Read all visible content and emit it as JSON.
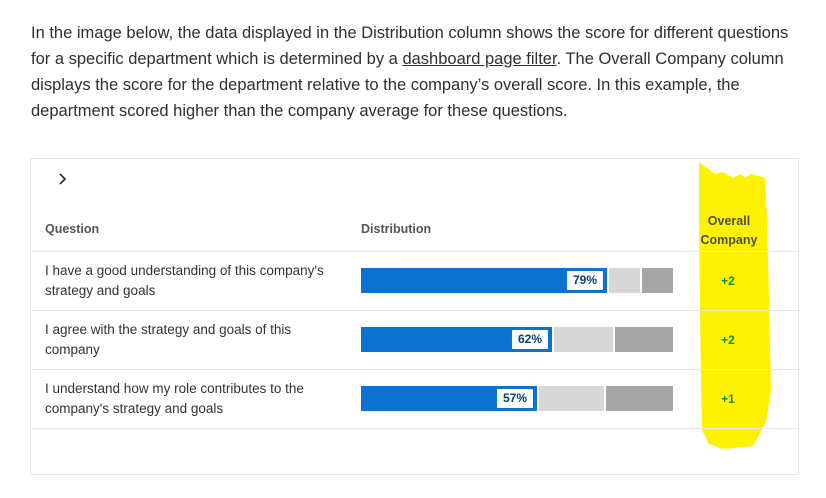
{
  "intro": {
    "part1": "In the image below, the data displayed in the Distribution column shows the score for different questions for a specific department which is determined by a ",
    "link": "dashboard page filter",
    "part2": ". The Overall Company column displays the score for the department relative to the company’s overall score. In this example, the department scored higher than the company average for these questions."
  },
  "table": {
    "expand_icon": "chevron-right-icon",
    "headers": {
      "question": "Question",
      "distribution": "Distribution",
      "overall": "Overall Company"
    },
    "rows": [
      {
        "question": "I have a good understanding of this company's strategy and goals",
        "percent_label": "79%",
        "percent": 79,
        "light": 10,
        "dark": 10,
        "delta": "+2"
      },
      {
        "question": "I agree with the strategy and goals of this company",
        "percent_label": "62%",
        "percent": 62,
        "light": 19,
        "dark": 19,
        "delta": "+2"
      },
      {
        "question": "I understand how my role contributes to the company's strategy and goals",
        "percent_label": "57%",
        "percent": 57,
        "light": 21,
        "dark": 22,
        "delta": "+1"
      }
    ]
  },
  "colors": {
    "bar_primary": "#0b72d2",
    "bar_light": "#d7d7d7",
    "bar_dark": "#a6a6a6",
    "highlight": "#fff200",
    "positive": "#1a8a2a"
  }
}
